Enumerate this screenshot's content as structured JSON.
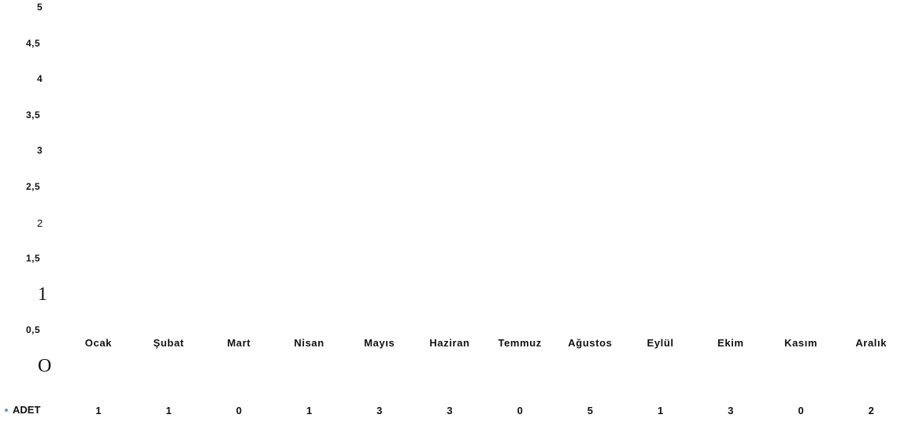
{
  "chart_data": {
    "type": "bar",
    "title": "",
    "xlabel": "",
    "ylabel": "",
    "ylim": [
      0,
      5
    ],
    "yticks": [
      "O",
      "0,5",
      "1",
      "1,5",
      "2",
      "2,5",
      "3",
      "3,5",
      "4",
      "4,5",
      "5"
    ],
    "categories": [
      "Ocak",
      "Şubat",
      "Mart",
      "Nisan",
      "Mayıs",
      "Haziran",
      "Temmuz",
      "Ağustos",
      "Eylül",
      "Ekim",
      "Kasım",
      "Aralık"
    ],
    "series": [
      {
        "name": "ADET",
        "color": "#5b9bd5",
        "values": [
          1,
          1,
          0,
          1,
          3,
          3,
          0,
          5,
          1,
          3,
          0,
          2
        ]
      }
    ],
    "value_labels": [
      "1",
      "1",
      "0",
      "1",
      "3",
      "3",
      "0",
      "5",
      "1",
      "3",
      "0",
      "2"
    ],
    "grid": false,
    "legend": "bottom-left data table"
  }
}
